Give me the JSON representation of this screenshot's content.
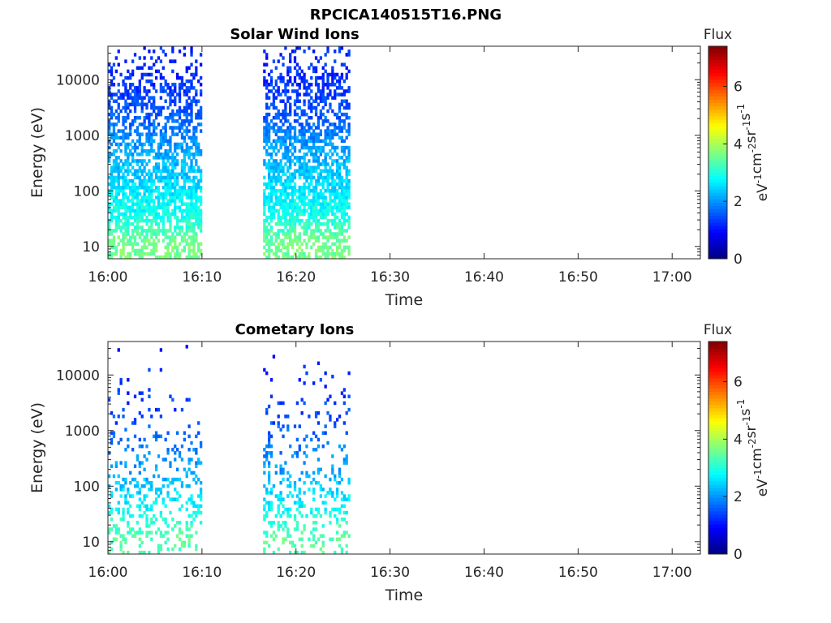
{
  "figure": {
    "filename_title": "RPCICA140515T16.PNG"
  },
  "chart_data": [
    {
      "type": "heatmap",
      "title": "Solar Wind Ions",
      "xlabel": "Time",
      "ylabel": "Energy (eV)",
      "x_ticks": [
        "16:00",
        "16:10",
        "16:20",
        "16:30",
        "16:40",
        "16:50",
        "17:00"
      ],
      "x_range_minutes": [
        0,
        63
      ],
      "y_scale": "log",
      "y_ticks": [
        "10",
        "100",
        "1000",
        "10000"
      ],
      "y_range": [
        6,
        40000
      ],
      "colorbar": {
        "label": "Flux",
        "unit": "eV-1cm-2sr-1s-1",
        "ticks": [
          "0",
          "2",
          "4",
          "6"
        ],
        "range": [
          0,
          7.4
        ],
        "colormap": "jet"
      },
      "data_intervals_minutes": [
        [
          0,
          10
        ],
        [
          16.5,
          25.7
        ]
      ],
      "flux_profile": [
        {
          "energy_eV": 12,
          "flux": 3.6,
          "occupancy": 0.6
        },
        {
          "energy_eV": 30,
          "flux": 3.0,
          "occupancy": 0.7
        },
        {
          "energy_eV": 80,
          "flux": 2.7,
          "occupancy": 0.8
        },
        {
          "energy_eV": 200,
          "flux": 2.4,
          "occupancy": 0.7
        },
        {
          "energy_eV": 600,
          "flux": 2.1,
          "occupancy": 0.6
        },
        {
          "energy_eV": 2000,
          "flux": 1.6,
          "occupancy": 0.55
        },
        {
          "energy_eV": 8000,
          "flux": 1.3,
          "occupancy": 0.5
        },
        {
          "energy_eV": 25000,
          "flux": 1.2,
          "occupancy": 0.15
        }
      ]
    },
    {
      "type": "heatmap",
      "title": "Cometary Ions",
      "xlabel": "Time",
      "ylabel": "Energy (eV)",
      "x_ticks": [
        "16:00",
        "16:10",
        "16:20",
        "16:30",
        "16:40",
        "16:50",
        "17:00"
      ],
      "x_range_minutes": [
        0,
        63
      ],
      "y_scale": "log",
      "y_ticks": [
        "10",
        "100",
        "1000",
        "10000"
      ],
      "y_range": [
        6,
        40000
      ],
      "colorbar": {
        "label": "Flux",
        "unit": "eV-1cm-2sr-1s-1",
        "ticks": [
          "0",
          "2",
          "4",
          "6"
        ],
        "range": [
          0,
          7.4
        ],
        "colormap": "jet"
      },
      "data_intervals_minutes": [
        [
          0,
          10
        ],
        [
          16.5,
          25.7
        ]
      ],
      "flux_profile": [
        {
          "energy_eV": 12,
          "flux": 3.4,
          "occupancy": 0.25
        },
        {
          "energy_eV": 30,
          "flux": 2.9,
          "occupancy": 0.3
        },
        {
          "energy_eV": 80,
          "flux": 2.5,
          "occupancy": 0.3
        },
        {
          "energy_eV": 200,
          "flux": 2.1,
          "occupancy": 0.2
        },
        {
          "energy_eV": 600,
          "flux": 1.8,
          "occupancy": 0.15
        },
        {
          "energy_eV": 2000,
          "flux": 1.4,
          "occupancy": 0.08
        },
        {
          "energy_eV": 8000,
          "flux": 1.3,
          "occupancy": 0.05
        },
        {
          "energy_eV": 25000,
          "flux": 1.2,
          "occupancy": 0.01
        }
      ]
    }
  ]
}
